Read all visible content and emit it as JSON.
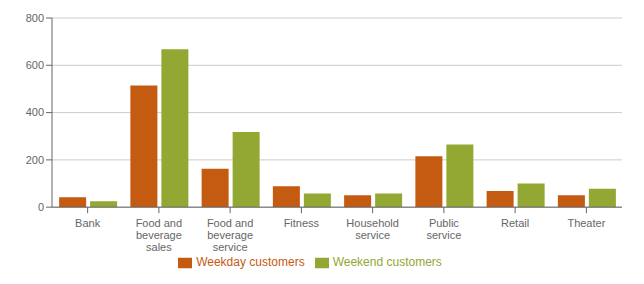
{
  "chart_data": {
    "type": "bar",
    "categories": [
      "Bank",
      "Food and\nbeverage\nsales",
      "Food and\nbeverage\nservice",
      "Fitness",
      "Household\nservice",
      "Public\nservice",
      "Retail",
      "Theater"
    ],
    "series": [
      {
        "name": "Weekday customers",
        "color": "#C55A11",
        "values": [
          42,
          515,
          163,
          88,
          50,
          215,
          68,
          50
        ]
      },
      {
        "name": "Weekend customers",
        "color": "#92A833",
        "values": [
          25,
          668,
          318,
          58,
          58,
          265,
          100,
          78
        ]
      }
    ],
    "ylim": [
      0,
      800
    ],
    "yticks": [
      0,
      200,
      400,
      600,
      800
    ],
    "grid": true,
    "legend": "bottom"
  }
}
